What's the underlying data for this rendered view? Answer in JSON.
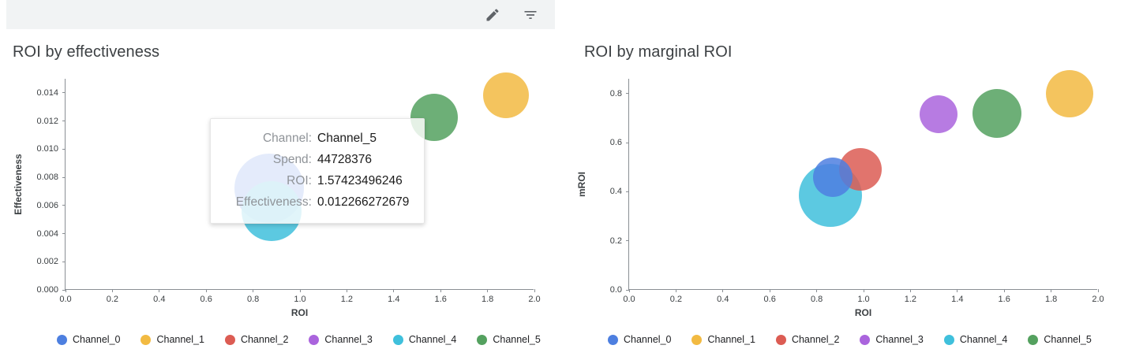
{
  "toolbar": {
    "edit_icon": "edit-pencil",
    "filter_icon": "filter-list"
  },
  "legend": [
    {
      "label": "Channel_0",
      "color": "#4D7FE0"
    },
    {
      "label": "Channel_1",
      "color": "#F2BA42"
    },
    {
      "label": "Channel_2",
      "color": "#DC5C53"
    },
    {
      "label": "Channel_3",
      "color": "#AA64DD"
    },
    {
      "label": "Channel_4",
      "color": "#3FC0DC"
    },
    {
      "label": "Channel_5",
      "color": "#54A15F"
    }
  ],
  "tooltip": {
    "rows": [
      {
        "label": "Channel:",
        "value": "Channel_5"
      },
      {
        "label": "Spend:",
        "value": "44728376"
      },
      {
        "label": "ROI:",
        "value": "1.57423496246"
      },
      {
        "label": "Effectiveness:",
        "value": "0.012266272679"
      }
    ]
  },
  "chart_data": [
    {
      "type": "scatter",
      "title": "ROI by effectiveness",
      "xlabel": "ROI",
      "ylabel": "Effectiveness",
      "xlim": [
        0,
        2.0
      ],
      "ylim": [
        0,
        0.015
      ],
      "xticks": [
        "0.0",
        "0.2",
        "0.4",
        "0.6",
        "0.8",
        "1.0",
        "1.2",
        "1.4",
        "1.6",
        "1.8",
        "2.0"
      ],
      "yticks": [
        "0.000",
        "0.002",
        "0.004",
        "0.006",
        "0.008",
        "0.010",
        "0.012",
        "0.014"
      ],
      "yaxis_width": 66,
      "legend_position": "bottom",
      "grid": false,
      "points": [
        {
          "name": "Channel_0",
          "x": 0.87,
          "y": 0.0072,
          "r": 44
        },
        {
          "name": "Channel_4",
          "x": 0.88,
          "y": 0.0056,
          "r": 38
        },
        {
          "name": "Channel_5",
          "x": 1.574,
          "y": 0.012266,
          "r": 30
        },
        {
          "name": "Channel_1",
          "x": 1.88,
          "y": 0.0138,
          "r": 29
        }
      ]
    },
    {
      "type": "scatter",
      "title": "ROI by marginal ROI",
      "xlabel": "ROI",
      "ylabel": "mROI",
      "xlim": [
        0,
        2.0
      ],
      "ylim": [
        0,
        0.86
      ],
      "xticks": [
        "0.0",
        "0.2",
        "0.4",
        "0.6",
        "0.8",
        "1.0",
        "1.2",
        "1.4",
        "1.6",
        "1.8",
        "2.0"
      ],
      "yticks": [
        "0.0",
        "0.2",
        "0.4",
        "0.6",
        "0.8"
      ],
      "yaxis_width": 56,
      "legend_position": "bottom",
      "grid": false,
      "points": [
        {
          "name": "Channel_4",
          "x": 0.86,
          "y": 0.385,
          "r": 40
        },
        {
          "name": "Channel_2",
          "x": 0.985,
          "y": 0.49,
          "r": 27
        },
        {
          "name": "Channel_0",
          "x": 0.87,
          "y": 0.46,
          "r": 25
        },
        {
          "name": "Channel_3",
          "x": 1.32,
          "y": 0.715,
          "r": 24
        },
        {
          "name": "Channel_5",
          "x": 1.57,
          "y": 0.72,
          "r": 31
        },
        {
          "name": "Channel_1",
          "x": 1.88,
          "y": 0.8,
          "r": 30
        }
      ]
    }
  ]
}
